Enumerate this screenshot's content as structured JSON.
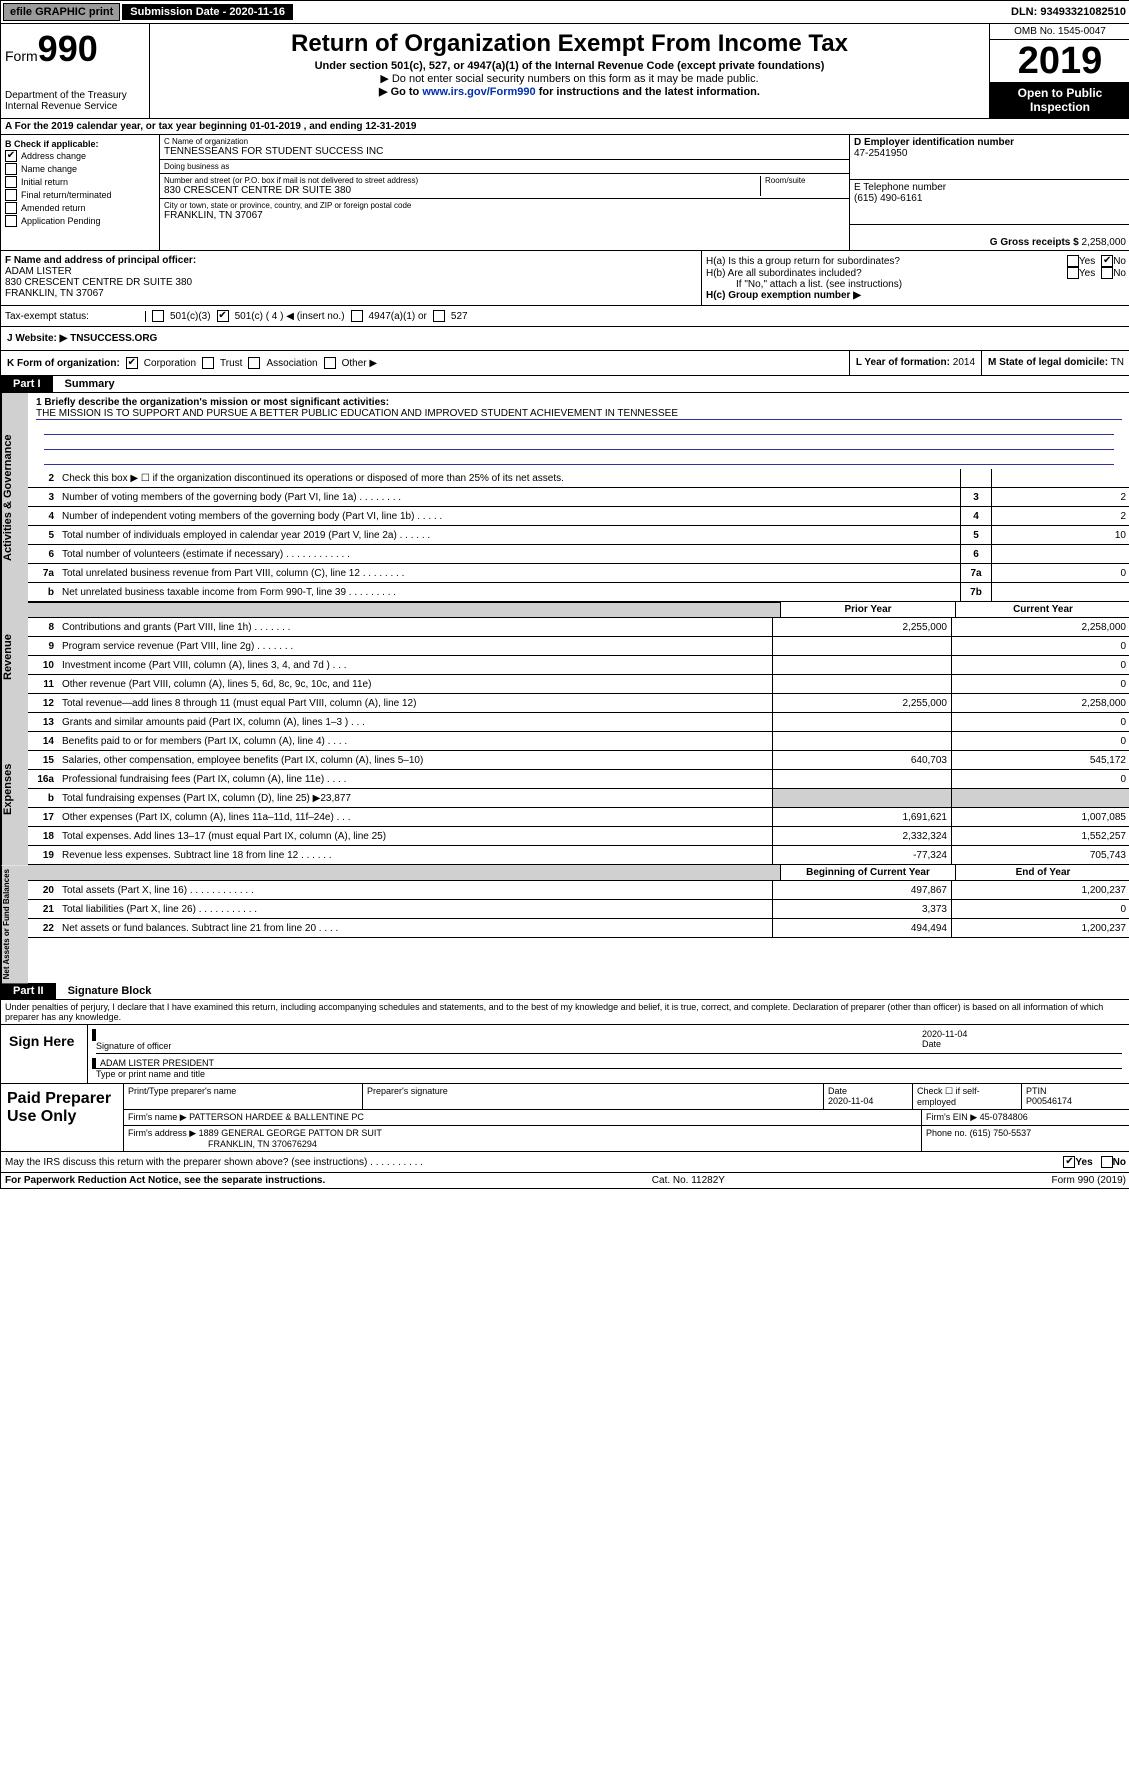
{
  "top": {
    "efile": "efile GRAPHIC print",
    "sub_label": "Submission Date - 2020-11-16",
    "dln": "DLN: 93493321082510"
  },
  "header": {
    "form_label": "Form",
    "form_num": "990",
    "dept": "Department of the Treasury",
    "irs": "Internal Revenue Service",
    "title": "Return of Organization Exempt From Income Tax",
    "sub1": "Under section 501(c), 527, or 4947(a)(1) of the Internal Revenue Code (except private foundations)",
    "sub2": "▶ Do not enter social security numbers on this form as it may be made public.",
    "sub3_pre": "▶ Go to ",
    "sub3_link": "www.irs.gov/Form990",
    "sub3_post": " for instructions and the latest information.",
    "omb": "OMB No. 1545-0047",
    "year": "2019",
    "open": "Open to Public Inspection"
  },
  "row_a": "A For the 2019 calendar year, or tax year beginning 01-01-2019    , and ending 12-31-2019",
  "box_b": {
    "label": "B Check if applicable:",
    "items": [
      {
        "checked": true,
        "text": "Address change"
      },
      {
        "checked": false,
        "text": "Name change"
      },
      {
        "checked": false,
        "text": "Initial return"
      },
      {
        "checked": false,
        "text": "Final return/terminated"
      },
      {
        "checked": false,
        "text": "Amended return"
      },
      {
        "checked": false,
        "text": "Application Pending"
      }
    ]
  },
  "box_c": {
    "name_label": "C Name of organization",
    "name": "TENNESSEANS FOR STUDENT SUCCESS INC",
    "dba_label": "Doing business as",
    "dba": "",
    "addr_label": "Number and street (or P.O. box if mail is not delivered to street address)",
    "room_label": "Room/suite",
    "addr": "830 CRESCENT CENTRE DR SUITE 380",
    "city_label": "City or town, state or province, country, and ZIP or foreign postal code",
    "city": "FRANKLIN, TN  37067"
  },
  "box_d": {
    "label": "D Employer identification number",
    "val": "47-2541950"
  },
  "box_e": {
    "label": "E Telephone number",
    "val": "(615) 490-6161"
  },
  "box_g": {
    "label": "G Gross receipts $",
    "val": "2,258,000"
  },
  "box_f": {
    "label": "F  Name and address of principal officer:",
    "name": "ADAM LISTER",
    "addr1": "830 CRESCENT CENTRE DR SUITE 380",
    "addr2": "FRANKLIN, TN  37067"
  },
  "box_h": {
    "a": "H(a)  Is this a group return for subordinates?",
    "b": "H(b)  Are all subordinates included?",
    "b_note": "If \"No,\" attach a list. (see instructions)",
    "c": "H(c)  Group exemption number ▶",
    "yes": "Yes",
    "no": "No"
  },
  "tax_status": {
    "label": "Tax-exempt status:",
    "o1": "501(c)(3)",
    "o2": "501(c) ( 4 ) ◀ (insert no.)",
    "o3": "4947(a)(1) or",
    "o4": "527"
  },
  "website": {
    "label": "J  Website: ▶",
    "val": "TNSUCCESS.ORG"
  },
  "row_k": "K Form of organization:",
  "k_opts": [
    "Corporation",
    "Trust",
    "Association",
    "Other ▶"
  ],
  "row_l": {
    "label": "L Year of formation:",
    "val": "2014"
  },
  "row_m": {
    "label": "M State of legal domicile:",
    "val": "TN"
  },
  "parts": {
    "p1": "Part I",
    "p1t": "Summary",
    "p2": "Part II",
    "p2t": "Signature Block"
  },
  "mission": {
    "q": "1  Briefly describe the organization's mission or most significant activities:",
    "text": "THE MISSION IS TO SUPPORT AND PURSUE A BETTER PUBLIC EDUCATION AND IMPROVED STUDENT ACHIEVEMENT IN TENNESSEE"
  },
  "gov_lines": [
    {
      "n": "2",
      "d": "Check this box ▶ ☐  if the organization discontinued its operations or disposed of more than 25% of its net assets.",
      "box": "",
      "v": ""
    },
    {
      "n": "3",
      "d": "Number of voting members of the governing body (Part VI, line 1a)   .    .    .    .    .    .    .    .",
      "box": "3",
      "v": "2"
    },
    {
      "n": "4",
      "d": "Number of independent voting members of the governing body (Part VI, line 1b)   .    .    .    .    .",
      "box": "4",
      "v": "2"
    },
    {
      "n": "5",
      "d": "Total number of individuals employed in calendar year 2019 (Part V, line 2a)   .    .    .    .    .    .",
      "box": "5",
      "v": "10"
    },
    {
      "n": "6",
      "d": "Total number of volunteers (estimate if necessary)   .    .    .    .    .    .    .    .    .    .    .    .",
      "box": "6",
      "v": ""
    },
    {
      "n": "7a",
      "d": "Total unrelated business revenue from Part VIII, column (C), line 12   .    .    .    .    .    .    .    .",
      "box": "7a",
      "v": "0"
    },
    {
      "n": "b",
      "d": "Net unrelated business taxable income from Form 990-T, line 39   .    .    .    .    .    .    .    .    .",
      "box": "7b",
      "v": ""
    }
  ],
  "col_h": {
    "prior": "Prior Year",
    "current": "Current Year",
    "begin": "Beginning of Current Year",
    "end": "End of Year"
  },
  "rev_lines": [
    {
      "n": "8",
      "d": "Contributions and grants (Part VIII, line 1h)   .    .    .    .    .    .    .",
      "p": "2,255,000",
      "c": "2,258,000"
    },
    {
      "n": "9",
      "d": "Program service revenue (Part VIII, line 2g)   .    .    .    .    .    .    .",
      "p": "",
      "c": "0"
    },
    {
      "n": "10",
      "d": "Investment income (Part VIII, column (A), lines 3, 4, and 7d )   .    .    .",
      "p": "",
      "c": "0"
    },
    {
      "n": "11",
      "d": "Other revenue (Part VIII, column (A), lines 5, 6d, 8c, 9c, 10c, and 11e)",
      "p": "",
      "c": "0"
    },
    {
      "n": "12",
      "d": "Total revenue—add lines 8 through 11 (must equal Part VIII, column (A), line 12)",
      "p": "2,255,000",
      "c": "2,258,000"
    }
  ],
  "exp_lines": [
    {
      "n": "13",
      "d": "Grants and similar amounts paid (Part IX, column (A), lines 1–3 )   .    .    .",
      "p": "",
      "c": "0"
    },
    {
      "n": "14",
      "d": "Benefits paid to or for members (Part IX, column (A), line 4)   .    .    .    .",
      "p": "",
      "c": "0"
    },
    {
      "n": "15",
      "d": "Salaries, other compensation, employee benefits (Part IX, column (A), lines 5–10)",
      "p": "640,703",
      "c": "545,172"
    },
    {
      "n": "16a",
      "d": "Professional fundraising fees (Part IX, column (A), line 11e)   .    .    .    .",
      "p": "",
      "c": "0"
    },
    {
      "n": "b",
      "d": "Total fundraising expenses (Part IX, column (D), line 25) ▶23,877",
      "p": "__shade__",
      "c": "__shade__"
    },
    {
      "n": "17",
      "d": "Other expenses (Part IX, column (A), lines 11a–11d, 11f–24e)   .    .    .",
      "p": "1,691,621",
      "c": "1,007,085"
    },
    {
      "n": "18",
      "d": "Total expenses. Add lines 13–17 (must equal Part IX, column (A), line 25)",
      "p": "2,332,324",
      "c": "1,552,257"
    },
    {
      "n": "19",
      "d": "Revenue less expenses. Subtract line 18 from line 12   .    .    .    .    .    .",
      "p": "-77,324",
      "c": "705,743"
    }
  ],
  "net_lines": [
    {
      "n": "20",
      "d": "Total assets (Part X, line 16)   .    .    .    .    .    .    .    .    .    .    .    .",
      "p": "497,867",
      "c": "1,200,237"
    },
    {
      "n": "21",
      "d": "Total liabilities (Part X, line 26)   .    .    .    .    .    .    .    .    .    .    .",
      "p": "3,373",
      "c": "0"
    },
    {
      "n": "22",
      "d": "Net assets or fund balances. Subtract line 21 from line 20   .    .    .    .",
      "p": "494,494",
      "c": "1,200,237"
    }
  ],
  "side_labels": {
    "gov": "Activities & Governance",
    "rev": "Revenue",
    "exp": "Expenses",
    "net": "Net Assets or Fund Balances"
  },
  "perjury": "Under penalties of perjury, I declare that I have examined this return, including accompanying schedules and statements, and to the best of my knowledge and belief, it is true, correct, and complete. Declaration of preparer (other than officer) is based on all information of which preparer has any knowledge.",
  "sign": {
    "here": "Sign Here",
    "sig_of_officer": "Signature of officer",
    "date": "2020-11-04",
    "date_label": "Date",
    "name_title": "ADAM LISTER  PRESIDENT",
    "type_print": "Type or print name and title"
  },
  "paid": {
    "label": "Paid Preparer Use Only",
    "h1": "Print/Type preparer's name",
    "h2": "Preparer's signature",
    "h3": "Date",
    "h4": "Check ☐ if self-employed",
    "h5": "PTIN",
    "date": "2020-11-04",
    "ptin": "P00546174",
    "firm_name_l": "Firm's name    ▶",
    "firm_name": "PATTERSON HARDEE & BALLENTINE PC",
    "firm_ein_l": "Firm's EIN ▶",
    "firm_ein": "45-0784806",
    "firm_addr_l": "Firm's address ▶",
    "firm_addr1": "1889 GENERAL GEORGE PATTON DR SUIT",
    "firm_addr2": "FRANKLIN, TN  370676294",
    "phone_l": "Phone no.",
    "phone": "(615) 750-5537"
  },
  "discuss": "May the IRS discuss this return with the preparer shown above? (see instructions)   .    .    .    .    .    .    .    .    .    .",
  "footer": {
    "l": "For Paperwork Reduction Act Notice, see the separate instructions.",
    "m": "Cat. No. 11282Y",
    "r": "Form 990 (2019)"
  }
}
